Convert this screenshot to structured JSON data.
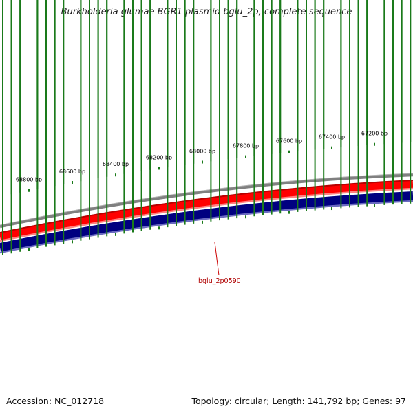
{
  "title": "Burkholderia glumae BGR1 plasmid bglu_2p, complete sequence",
  "footer": {
    "accession": "Accession: NC_012718",
    "summary": "Topology: circular; Length: 141,792 bp; Genes: 97"
  },
  "map": {
    "ticks": [
      {
        "bp": 68800,
        "label": "68800 bp"
      },
      {
        "bp": 68600,
        "label": "68600 bp"
      },
      {
        "bp": 68400,
        "label": "68400 bp"
      },
      {
        "bp": 68200,
        "label": "68200 bp"
      },
      {
        "bp": 68000,
        "label": "68000 bp"
      },
      {
        "bp": 67800,
        "label": "67800 bp"
      },
      {
        "bp": 67600,
        "label": "67600 bp"
      },
      {
        "bp": 67400,
        "label": "67400 bp"
      },
      {
        "bp": 67200,
        "label": "67200 bp"
      }
    ],
    "gene_label": "bglu_2p0590",
    "colors": {
      "backbone": "#808080",
      "forward_strand": "#ff0000",
      "forward_dark": "#cc0000",
      "reverse_strand": "#000080",
      "reverse_edge": "#6a6ac0",
      "ticks": "#1a7a1a",
      "gene_label": "#b00000"
    }
  }
}
